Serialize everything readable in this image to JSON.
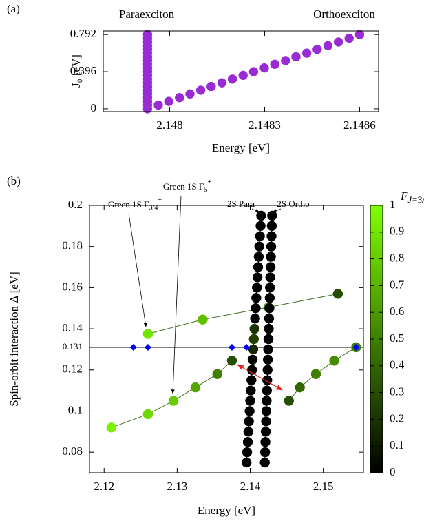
{
  "chart_data": [
    {
      "type": "scatter",
      "panel": "(a)",
      "x_label": "Energy [eV]",
      "y_label": "J₀ [eV]",
      "xlim": [
        2.14779,
        2.14866
      ],
      "ylim": [
        -0.03,
        0.83
      ],
      "xticks": [
        2.148,
        2.1483,
        2.1486
      ],
      "yticks": [
        0,
        0.396,
        0.792
      ],
      "series": [
        {
          "name": "Paraexciton",
          "color": "#9a2bd2",
          "x": [
            2.14793,
            2.14793,
            2.14793,
            2.14793,
            2.14793,
            2.14793,
            2.14793,
            2.14793,
            2.14793,
            2.14793,
            2.14793,
            2.14793,
            2.14793,
            2.14793,
            2.14793,
            2.14793,
            2.14793,
            2.14793,
            2.14793,
            2.14793,
            2.14793
          ],
          "values": [
            0,
            0.0396,
            0.0792,
            0.1188,
            0.1584,
            0.198,
            0.2376,
            0.2772,
            0.3168,
            0.3564,
            0.396,
            0.4356,
            0.4752,
            0.5148,
            0.5544,
            0.594,
            0.6336,
            0.6732,
            0.7128,
            0.7524,
            0.792
          ]
        },
        {
          "name": "Orthoexciton",
          "color": "#9a2bd2",
          "x": [
            2.147964,
            2.147997,
            2.148031,
            2.148064,
            2.148098,
            2.148131,
            2.148165,
            2.148198,
            2.148232,
            2.148265,
            2.148299,
            2.148332,
            2.148366,
            2.148399,
            2.148433,
            2.148466,
            2.1485,
            2.148533,
            2.148567,
            2.1486
          ],
          "values": [
            0.0396,
            0.0792,
            0.1188,
            0.1584,
            0.198,
            0.2376,
            0.2772,
            0.3168,
            0.3564,
            0.396,
            0.4356,
            0.4752,
            0.5148,
            0.5544,
            0.594,
            0.6336,
            0.6732,
            0.7128,
            0.7524,
            0.792
          ]
        }
      ]
    },
    {
      "type": "scatter",
      "panel": "(b)",
      "x_label": "Energy [eV]",
      "y_label": "Spin-orbit interaction Δ [eV]",
      "xlim": [
        2.118,
        2.1555
      ],
      "ylim": [
        0.07,
        0.2
      ],
      "xticks": [
        2.12,
        2.13,
        2.14,
        2.15
      ],
      "yticks": [
        0.08,
        0.1,
        0.12,
        0.131,
        0.14,
        0.16,
        0.18,
        0.2
      ],
      "hlines": [
        0.131
      ],
      "colorbar": {
        "label": "F",
        "label_sub": "J=3/2",
        "clim": [
          0,
          1
        ],
        "colormap": [
          "#000000",
          "#80ff00"
        ],
        "ticks": [
          0,
          0.1,
          0.2,
          0.3,
          0.4,
          0.5,
          0.6,
          0.7,
          0.8,
          0.9,
          1
        ]
      },
      "annotations": [
        {
          "text": "Green 1S Γ",
          "sub": "3/4",
          "sup": "+"
        },
        {
          "text": "Green 1S Γ",
          "sub": "5",
          "sup": "+"
        },
        {
          "text": "2S Para"
        },
        {
          "text": "2S Ortho"
        }
      ],
      "series": [
        {
          "line_color": "#3f6e1c",
          "x": [
            2.126,
            2.1335,
            2.1425,
            2.152
          ],
          "values": [
            0.1375,
            0.1445,
            0.1505,
            0.157
          ],
          "color_values": [
            0.9,
            0.75,
            0.65,
            0.3
          ]
        },
        {
          "line_color": "#3f6e1c",
          "x": [
            2.121,
            2.126,
            2.1295,
            2.1325,
            2.1355,
            2.1375
          ],
          "values": [
            0.092,
            0.0985,
            0.105,
            0.1115,
            0.118,
            0.1245
          ],
          "color_values": [
            0.95,
            0.85,
            0.8,
            0.65,
            0.5,
            0.3
          ]
        },
        {
          "line_color": "#3f6e1c",
          "x": [
            2.1453,
            2.1468,
            2.149,
            2.1515,
            2.1545
          ],
          "values": [
            0.105,
            0.1115,
            0.118,
            0.1245,
            0.131
          ],
          "color_values": [
            0.3,
            0.4,
            0.5,
            0.55,
            0.5
          ]
        },
        {
          "line_color": "#000000",
          "x": [
            2.1395,
            2.13958,
            2.13967,
            2.13975,
            2.13983,
            2.13992,
            2.14,
            2.14008,
            2.14017,
            2.14025,
            2.14033,
            2.14042,
            2.1405,
            2.14058,
            2.14067,
            2.14075,
            2.14083,
            2.14092,
            2.141,
            2.14108,
            2.14117,
            2.14125,
            2.14133,
            2.14142,
            2.1415
          ],
          "values": [
            0.075,
            0.08,
            0.085,
            0.09,
            0.095,
            0.1,
            0.105,
            0.11,
            0.115,
            0.12,
            0.125,
            0.13,
            0.135,
            0.14,
            0.145,
            0.15,
            0.155,
            0.16,
            0.165,
            0.17,
            0.175,
            0.18,
            0.185,
            0.19,
            0.195
          ],
          "color_values": [
            0,
            0,
            0,
            0,
            0,
            0,
            0,
            0,
            0,
            0,
            0,
            0.15,
            0.25,
            0.2,
            0,
            0,
            0,
            0,
            0,
            0,
            0,
            0,
            0,
            0,
            0
          ]
        },
        {
          "line_color": "#000000",
          "x": [
            2.142,
            2.14204,
            2.14208,
            2.14213,
            2.14217,
            2.14221,
            2.14225,
            2.14229,
            2.14233,
            2.14238,
            2.14242,
            2.14246,
            2.1425,
            2.14254,
            2.14258,
            2.14263,
            2.14267,
            2.14271,
            2.14275,
            2.14279,
            2.14283,
            2.14288,
            2.14292,
            2.14296,
            2.143
          ],
          "values": [
            0.075,
            0.08,
            0.085,
            0.09,
            0.095,
            0.1,
            0.105,
            0.11,
            0.115,
            0.12,
            0.125,
            0.13,
            0.135,
            0.14,
            0.145,
            0.15,
            0.155,
            0.16,
            0.165,
            0.17,
            0.175,
            0.18,
            0.185,
            0.19,
            0.195
          ],
          "color_values": [
            0,
            0,
            0,
            0,
            0,
            0,
            0,
            0,
            0,
            0,
            0,
            0,
            0,
            0,
            0,
            0,
            0,
            0,
            0,
            0,
            0,
            0,
            0,
            0,
            0
          ]
        },
        {
          "marker": "diamond",
          "color": "#0000ff",
          "x": [
            2.124,
            2.126,
            2.1375,
            2.1395,
            2.1545
          ],
          "values": [
            0.131,
            0.131,
            0.131,
            0.131,
            0.131
          ]
        }
      ]
    }
  ]
}
